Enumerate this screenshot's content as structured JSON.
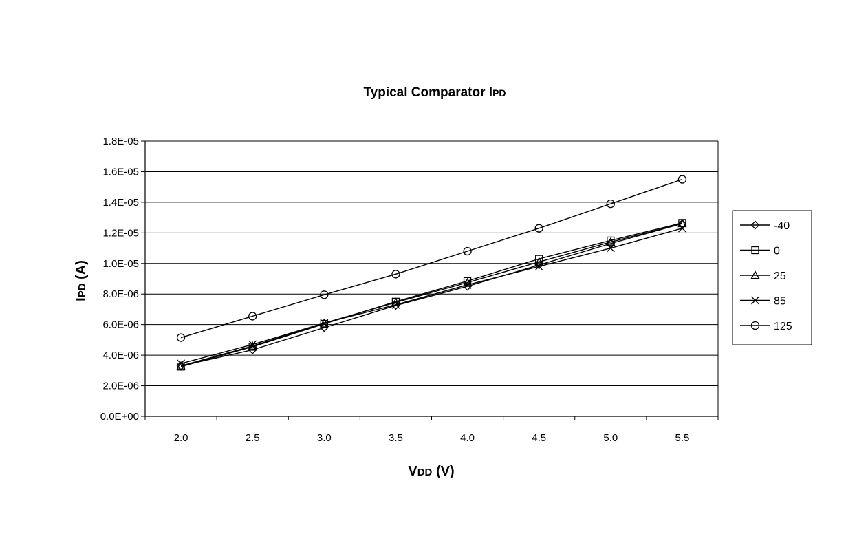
{
  "chart_data": {
    "type": "line",
    "title": "Typical Comparator IPD",
    "title_main": "Typical Comparator I",
    "title_sub": "PD",
    "xlabel": "VDD (V)",
    "xlabel_main": "V",
    "xlabel_sub": "DD",
    "xlabel_unit": " (V)",
    "ylabel": "IPD (A)",
    "ylabel_main": "I",
    "ylabel_sub": "PD",
    "ylabel_unit": " (A)",
    "x": [
      2.0,
      2.5,
      3.0,
      3.5,
      4.0,
      4.5,
      5.0,
      5.5
    ],
    "x_tick_labels": [
      "2.0",
      "2.5",
      "3.0",
      "3.5",
      "4.0",
      "4.5",
      "5.0",
      "5.5"
    ],
    "ylim": [
      0,
      1.8e-05
    ],
    "y_ticks": [
      0,
      2e-06,
      4e-06,
      6e-06,
      8e-06,
      1e-05,
      1.2e-05,
      1.4e-05,
      1.6e-05,
      1.8e-05
    ],
    "y_tick_labels": [
      "0.0E+00",
      "2.0E-06",
      "4.0E-06",
      "6.0E-06",
      "8.0E-06",
      "1.0E-05",
      "1.2E-05",
      "1.4E-05",
      "1.6E-05",
      "1.8E-05"
    ],
    "grid": "horizontal major gridlines",
    "legend_position": "right",
    "series": [
      {
        "name": "-40",
        "marker": "diamond",
        "values": [
          3.3e-06,
          4.35e-06,
          5.8e-06,
          7.25e-06,
          8.5e-06,
          9.9e-06,
          1.13e-05,
          1.26e-05
        ]
      },
      {
        "name": "0",
        "marker": "square",
        "values": [
          3.25e-06,
          4.55e-06,
          6.05e-06,
          7.5e-06,
          8.85e-06,
          1.03e-05,
          1.15e-05,
          1.265e-05
        ]
      },
      {
        "name": "25",
        "marker": "triangle",
        "values": [
          3.3e-06,
          4.6e-06,
          6.1e-06,
          7.45e-06,
          8.75e-06,
          1.01e-05,
          1.14e-05,
          1.26e-05
        ]
      },
      {
        "name": "85",
        "marker": "x",
        "values": [
          3.45e-06,
          4.7e-06,
          6.1e-06,
          7.3e-06,
          8.6e-06,
          9.8e-06,
          1.1e-05,
          1.23e-05
        ]
      },
      {
        "name": "125",
        "marker": "circle",
        "values": [
          5.15e-06,
          6.55e-06,
          7.95e-06,
          9.3e-06,
          1.08e-05,
          1.23e-05,
          1.39e-05,
          1.55e-05
        ]
      }
    ]
  }
}
